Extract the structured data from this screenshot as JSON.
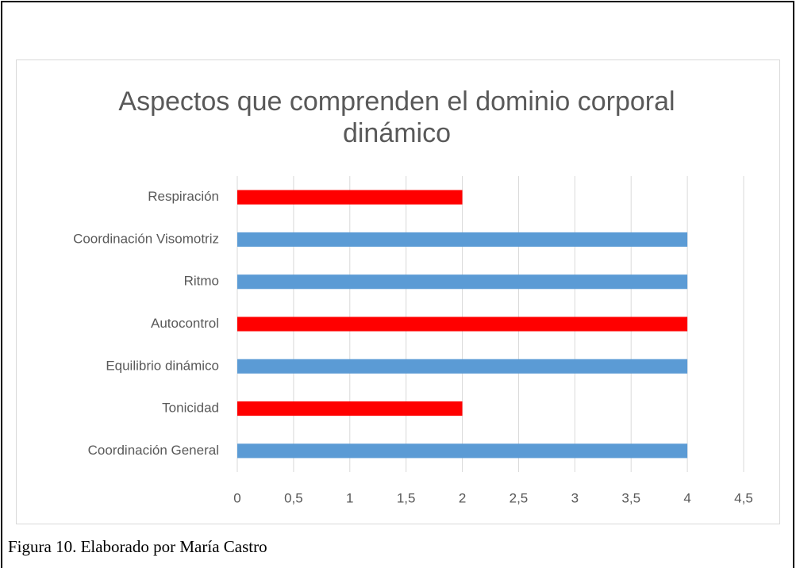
{
  "caption": "Figura 10. Elaborado por María Castro",
  "chart_data": {
    "type": "bar",
    "orientation": "horizontal",
    "title": [
      "Aspectos que comprenden el dominio corporal",
      "dinámico"
    ],
    "categories": [
      "Coordinación General",
      "Tonicidad",
      "Equilibrio dinámico",
      "Autocontrol",
      "Ritmo",
      "Coordinación Visomotriz",
      "Respiración"
    ],
    "values": [
      4,
      2,
      4,
      4,
      4,
      4,
      2
    ],
    "colors": [
      "#5b9bd5",
      "#ff0000",
      "#5b9bd5",
      "#ff0000",
      "#5b9bd5",
      "#5b9bd5",
      "#ff0000"
    ],
    "xlim": [
      0,
      4.5
    ],
    "xticks": [
      0,
      {
        "value": 0.5,
        "label": "0,5"
      },
      1,
      {
        "value": 1.5,
        "label": "1,5"
      },
      2,
      {
        "value": 2.5,
        "label": "2,5"
      },
      3,
      {
        "value": 3.5,
        "label": "3,5"
      },
      4,
      {
        "value": 4.5,
        "label": "4,5"
      }
    ],
    "grid": true
  }
}
